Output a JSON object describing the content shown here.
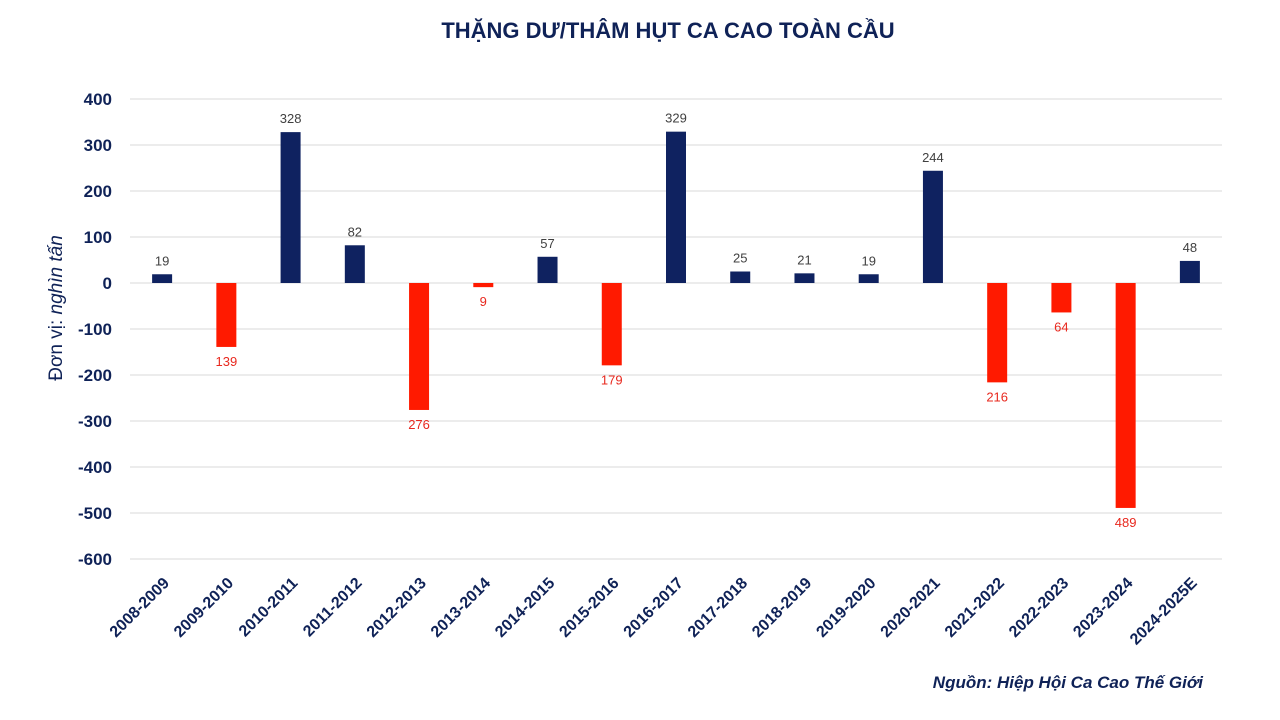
{
  "chart_data": {
    "type": "bar",
    "title": "THẶNG DƯ/THÂM HỤT CA CAO TOÀN CẦU",
    "ylabel_prefix": "Đơn vị: ",
    "ylabel_unit": "nghìn tấn",
    "ylim": [
      -600,
      400
    ],
    "yticks": [
      "400",
      "300",
      "200",
      "100",
      "0",
      "-100",
      "-200",
      "-300",
      "-400",
      "-500",
      "-600"
    ],
    "ytick_values": [
      400,
      300,
      200,
      100,
      0,
      -100,
      -200,
      -300,
      -400,
      -500,
      -600
    ],
    "categories": [
      "2008-2009",
      "2009-2010",
      "2010-2011",
      "2011-2012",
      "2012-2013",
      "2013-2014",
      "2014-2015",
      "2015-2016",
      "2016-2017",
      "2017-2018",
      "2018-2019",
      "2019-2020",
      "2020-2021",
      "2021-2022",
      "2022-2023",
      "2023-2024",
      "2024-2025E"
    ],
    "values": [
      19,
      -139,
      328,
      82,
      -276,
      -9,
      57,
      -179,
      329,
      25,
      21,
      19,
      244,
      -216,
      -64,
      -489,
      48
    ],
    "data_labels": [
      "19",
      "139",
      "328",
      "82",
      "276",
      "9",
      "57",
      "179",
      "329",
      "25",
      "21",
      "19",
      "244",
      "216",
      "64",
      "489",
      "48"
    ],
    "colors": {
      "positive": "#0f2260",
      "negative": "#ff1a00",
      "positive_label": "#404040",
      "negative_label": "#e8281e"
    },
    "grid": true,
    "legend": "none"
  },
  "source": "Nguồn: Hiệp Hội Ca Cao Thế Giới"
}
